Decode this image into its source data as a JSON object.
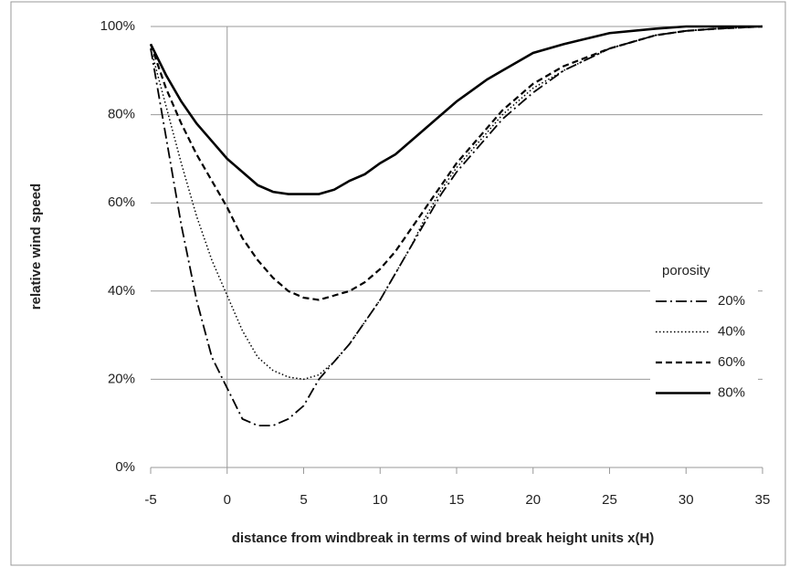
{
  "chart_data": {
    "type": "line",
    "xlabel": "distance from windbreak in terms of wind break height units x(H)",
    "ylabel": "relative wind speed",
    "legend_title": "porosity",
    "legend": "right",
    "grid": true,
    "x": [
      -5,
      -4,
      -3,
      -2,
      -1,
      0,
      1,
      2,
      3,
      4,
      5,
      6,
      7,
      8,
      9,
      10,
      11,
      12,
      13,
      14,
      15,
      16,
      17,
      18,
      19,
      20,
      22,
      25,
      28,
      30,
      32,
      35
    ],
    "series": [
      {
        "name": "20%",
        "color": "#000000",
        "style": "dashdot",
        "values": [
          95,
          75,
          55,
          38,
          25,
          18,
          11,
          9.5,
          9.5,
          11,
          14,
          20,
          24,
          28,
          33,
          38,
          44,
          50,
          56,
          62,
          67,
          71,
          75,
          79,
          82,
          85,
          90,
          95,
          98,
          99,
          99.5,
          100
        ]
      },
      {
        "name": "40%",
        "color": "#000000",
        "style": "dotted",
        "values": [
          95,
          82,
          69,
          57,
          47,
          39,
          31,
          25,
          22,
          20.5,
          20,
          21,
          24,
          28,
          33,
          38,
          44,
          50,
          57,
          63,
          68,
          72,
          76,
          80,
          83,
          86,
          90,
          95,
          98,
          99,
          99.5,
          100
        ]
      },
      {
        "name": "60%",
        "color": "#000000",
        "style": "dashed",
        "values": [
          96,
          86,
          78,
          71,
          65,
          59,
          52,
          47,
          43,
          40,
          38.5,
          38,
          39,
          40,
          42,
          45,
          49,
          54,
          59,
          64,
          69,
          73,
          77,
          81,
          84,
          87,
          91,
          95,
          98,
          99,
          99.5,
          100
        ]
      },
      {
        "name": "80%",
        "color": "#000000",
        "style": "solid",
        "values": [
          96,
          89,
          83,
          78,
          74,
          70,
          67,
          64,
          62.5,
          62,
          62,
          62,
          63,
          65,
          66.5,
          69,
          71,
          74,
          77,
          80,
          83,
          85.5,
          88,
          90,
          92,
          94,
          96,
          98.5,
          99.5,
          100,
          100,
          100
        ]
      }
    ],
    "xlim": [
      -5,
      35
    ],
    "xticks": [
      -5,
      0,
      5,
      10,
      15,
      20,
      25,
      30,
      35
    ],
    "ylim": [
      0,
      100
    ],
    "yticks": [
      {
        "value": 0,
        "label": "0%"
      },
      {
        "value": 20,
        "label": "20%"
      },
      {
        "value": 40,
        "label": "40%"
      },
      {
        "value": 60,
        "label": "60%"
      },
      {
        "value": 80,
        "label": "80%"
      },
      {
        "value": 100,
        "label": "100%"
      }
    ]
  }
}
